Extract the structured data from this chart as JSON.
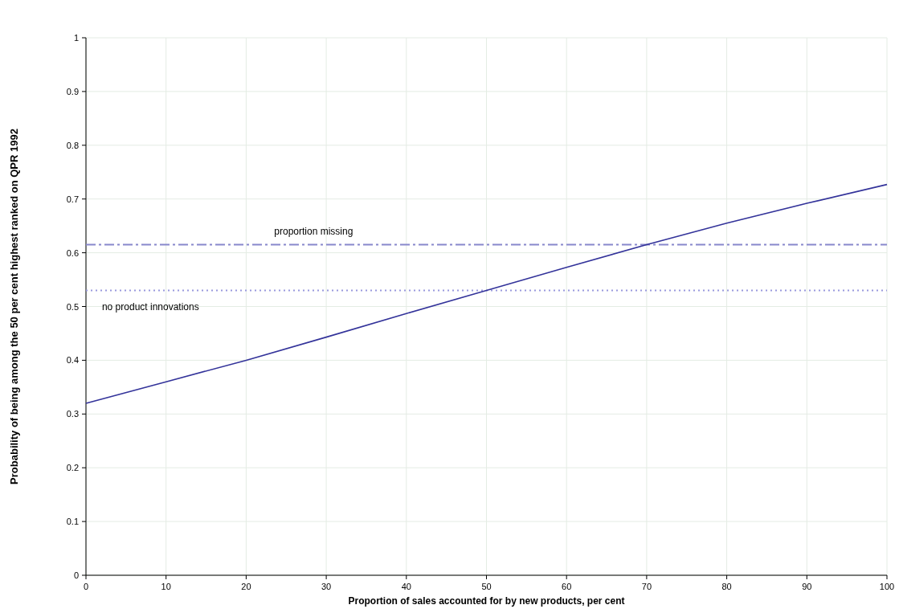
{
  "chart_data": {
    "type": "line",
    "xlabel": "Proportion of sales accounted for by new products, per cent",
    "ylabel": "Probability of being among the 50 per cent highest ranked on QPR 1992",
    "x": [
      0,
      10,
      20,
      30,
      40,
      50,
      60,
      70,
      80,
      90,
      100
    ],
    "series": [
      {
        "color": "#33339a",
        "values": [
          0.32,
          0.36,
          0.4,
          0.443,
          0.487,
          0.53,
          0.573,
          0.615,
          0.655,
          0.692,
          0.727
        ]
      }
    ],
    "xlim": [
      0,
      100
    ],
    "xticks": [
      0,
      10,
      20,
      30,
      40,
      50,
      60,
      70,
      80,
      90,
      100
    ],
    "ylim": [
      0,
      1
    ],
    "yticks": [
      0,
      0.1,
      0.2,
      0.3,
      0.4,
      0.5,
      0.6,
      0.7,
      0.8,
      0.9,
      1
    ],
    "ref_lines": [
      {
        "axis": "y",
        "value": 0.615,
        "label": "proportion missing",
        "color": "#8888cc",
        "line_style": "dashed"
      },
      {
        "axis": "y",
        "value": 0.53,
        "label": "no product innovations",
        "color": "#9999dd",
        "line_style": "dotted"
      }
    ],
    "grid": true,
    "marker": "none",
    "line_style": "solid"
  }
}
